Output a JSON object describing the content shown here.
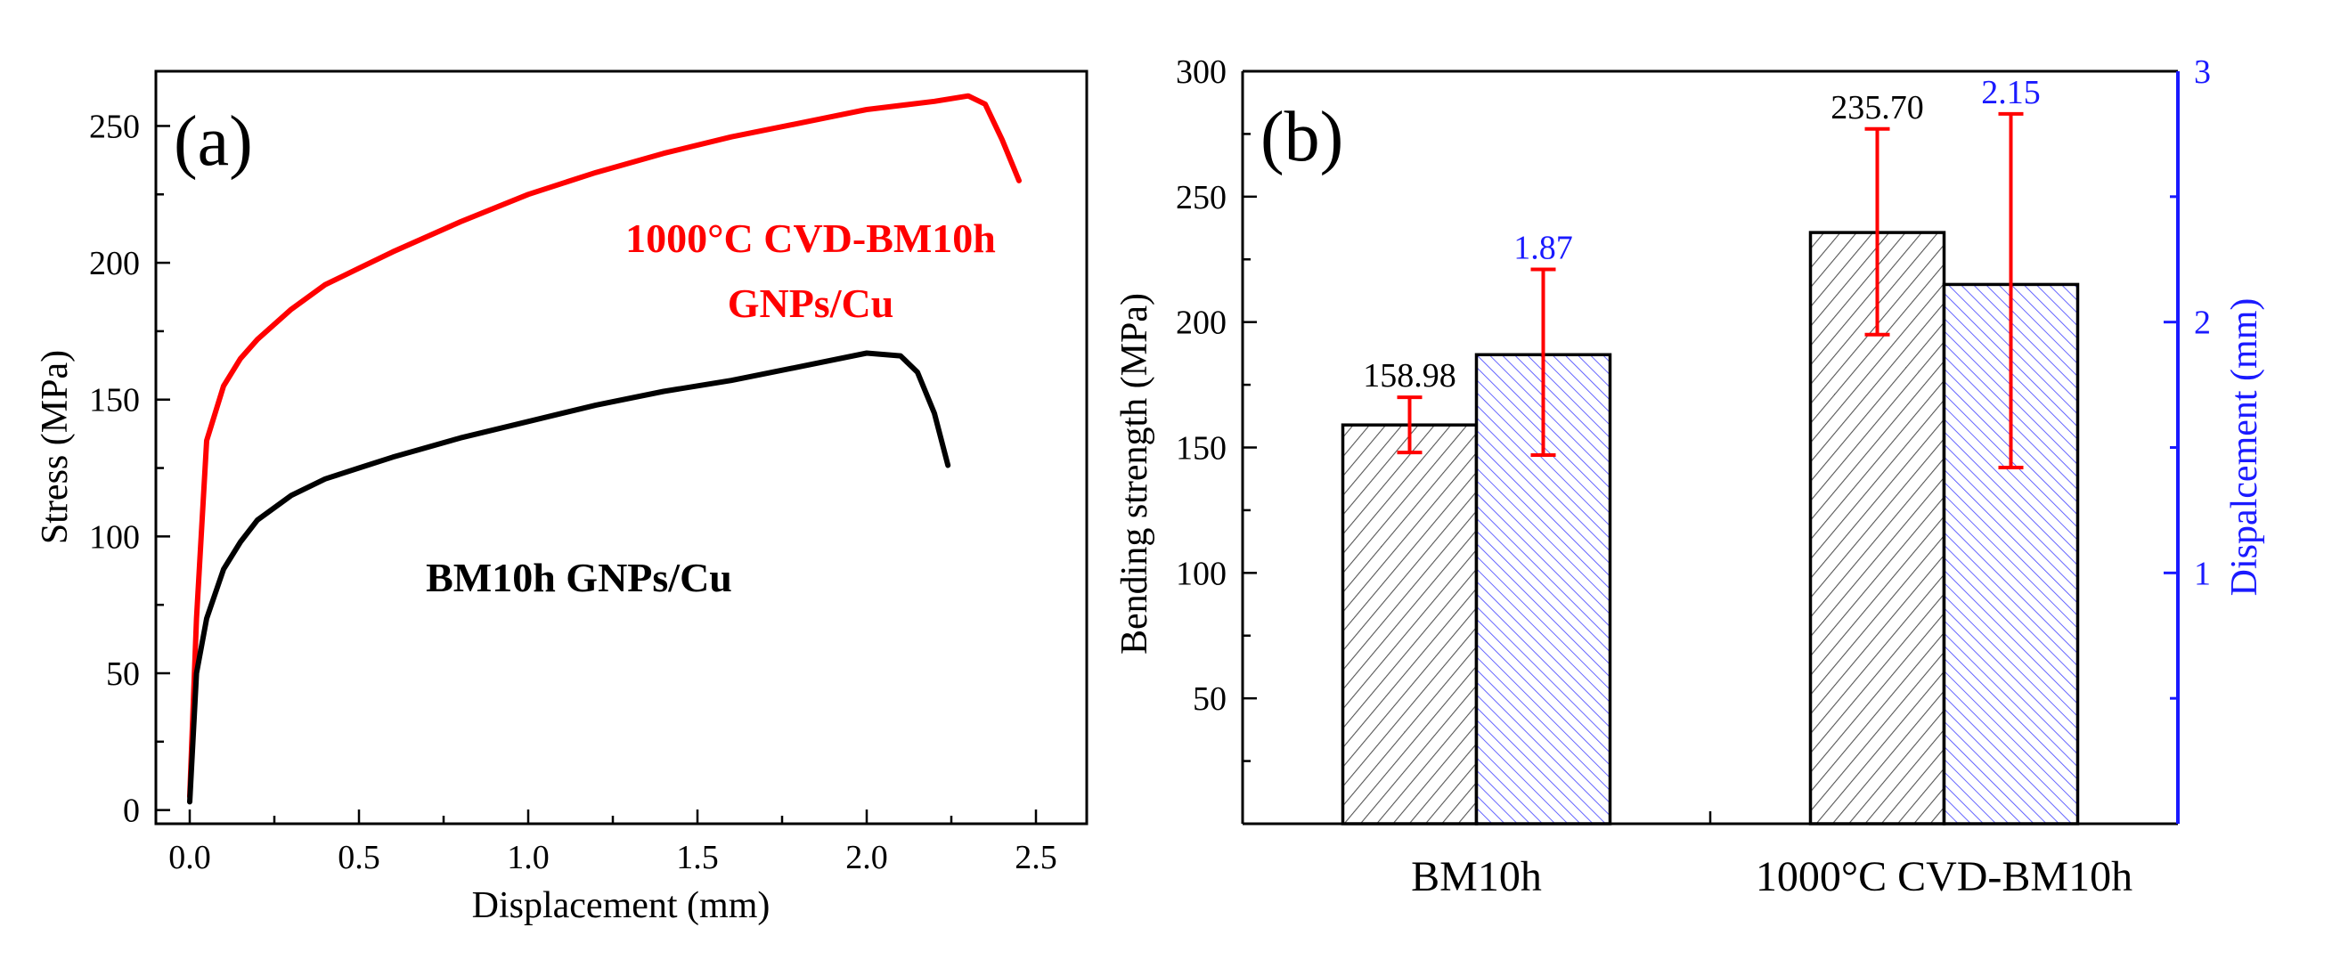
{
  "chart_data": [
    {
      "type": "line",
      "panel_label": "(a)",
      "xlabel": "Displacement (mm)",
      "ylabel": "Stress (MPa)",
      "xlim": [
        -0.1,
        2.65
      ],
      "ylim": [
        -5,
        270
      ],
      "xticks": [
        0.0,
        0.5,
        1.0,
        1.5,
        2.0,
        2.5
      ],
      "xtick_labels": [
        "0.0",
        "0.5",
        "1.0",
        "1.5",
        "2.0",
        "2.5"
      ],
      "yticks": [
        0,
        50,
        100,
        150,
        200,
        250
      ],
      "ytick_labels": [
        "0",
        "50",
        "100",
        "150",
        "200",
        "250"
      ],
      "grid": false,
      "series": [
        {
          "name": "1000°C CVD-BM10h GNPs/Cu",
          "label_lines": [
            "1000°C CVD-BM10h",
            "GNPs/Cu"
          ],
          "color": "#ff0000",
          "x": [
            0.0,
            0.02,
            0.05,
            0.1,
            0.15,
            0.2,
            0.3,
            0.4,
            0.5,
            0.6,
            0.8,
            1.0,
            1.2,
            1.4,
            1.6,
            1.8,
            2.0,
            2.2,
            2.3,
            2.35,
            2.4,
            2.45
          ],
          "y": [
            5,
            70,
            135,
            155,
            165,
            172,
            183,
            192,
            198,
            204,
            215,
            225,
            233,
            240,
            246,
            251,
            256,
            259,
            261,
            258,
            245,
            230
          ]
        },
        {
          "name": "BM10h GNPs/Cu",
          "label_lines": [
            "BM10h GNPs/Cu"
          ],
          "color": "#000000",
          "x": [
            0.0,
            0.02,
            0.05,
            0.1,
            0.15,
            0.2,
            0.3,
            0.4,
            0.5,
            0.6,
            0.8,
            1.0,
            1.2,
            1.4,
            1.6,
            1.8,
            2.0,
            2.1,
            2.15,
            2.2,
            2.24
          ],
          "y": [
            3,
            50,
            70,
            88,
            98,
            106,
            115,
            121,
            125,
            129,
            136,
            142,
            148,
            153,
            157,
            162,
            167,
            166,
            160,
            145,
            126
          ]
        }
      ]
    },
    {
      "type": "bar",
      "panel_label": "(b)",
      "categories": [
        "BM10h",
        "1000°C CVD-BM10h"
      ],
      "ylabel": "Bending strength (MPa)",
      "ylabel_right": "Dispalcement (mm)",
      "ylim": [
        0,
        300
      ],
      "ylim_right": [
        0,
        3
      ],
      "yticks": [
        50,
        100,
        150,
        200,
        250,
        300
      ],
      "ytick_labels": [
        "50",
        "100",
        "150",
        "200",
        "250",
        "300"
      ],
      "yticks_right": [
        1,
        2,
        3
      ],
      "ytick_labels_right": [
        "1",
        "2",
        "3"
      ],
      "grid": false,
      "series": [
        {
          "name": "Bending strength",
          "axis": "left",
          "color": "#444444",
          "values": [
            158.98,
            235.7
          ],
          "value_labels": [
            "158.98",
            "235.70"
          ],
          "err_low": [
            148,
            195
          ],
          "err_high": [
            170,
            277
          ]
        },
        {
          "name": "Displacement",
          "axis": "right",
          "color": "#1a1aff",
          "values": [
            1.87,
            2.15
          ],
          "value_labels": [
            "1.87",
            "2.15"
          ],
          "err_low": [
            1.47,
            1.42
          ],
          "err_high": [
            2.21,
            2.83
          ]
        }
      ],
      "error_bar_color": "#ff0000"
    }
  ]
}
